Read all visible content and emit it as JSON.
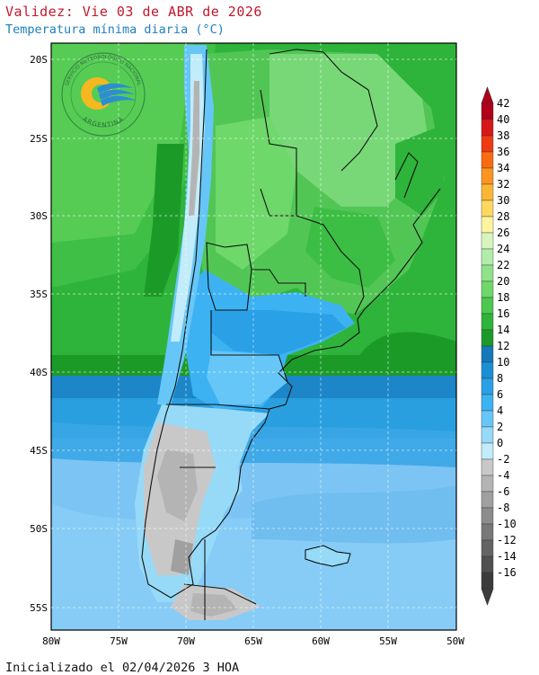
{
  "header": {
    "title": "Validez: Vie 03 de ABR de 2026",
    "subtitle": "Temperatura mínima diaria (°C)"
  },
  "footer": {
    "init_text": "Inicializado el 02/04/2026 3 HOA"
  },
  "logo": {
    "ring_text": "SERVICIO METEOROLÓGICO NACIONAL",
    "bottom_text": "ARGENTINA"
  },
  "axes": {
    "lat_labels": [
      "20S",
      "25S",
      "30S",
      "35S",
      "40S",
      "45S",
      "50S",
      "55S"
    ],
    "lon_labels": [
      "80W",
      "75W",
      "70W",
      "65W",
      "60W",
      "55W",
      "50W"
    ]
  },
  "colorbar": {
    "labels": [
      "42",
      "40",
      "38",
      "36",
      "34",
      "32",
      "30",
      "28",
      "26",
      "24",
      "22",
      "20",
      "18",
      "16",
      "14",
      "12",
      "10",
      "8",
      "6",
      "4",
      "2",
      "0",
      "-2",
      "-4",
      "-6",
      "-8",
      "-10",
      "-12",
      "-14",
      "-16"
    ],
    "colors": [
      "#b0001a",
      "#d81818",
      "#ee3a10",
      "#fa6a10",
      "#fb9420",
      "#fcb634",
      "#fdd860",
      "#fef4a0",
      "#d8f5c0",
      "#b2ecaa",
      "#8ee28a",
      "#6ed86a",
      "#4cc84c",
      "#2eb43a",
      "#1c9a28",
      "#1479b8",
      "#1a8fd4",
      "#2aa0e6",
      "#3db2f2",
      "#66c6f8",
      "#96daf8",
      "#c2ecfa",
      "#c8c8c8",
      "#b4b4b4",
      "#a0a0a0",
      "#8c8c8c",
      "#787878",
      "#646464",
      "#505050",
      "#3c3c3c"
    ]
  }
}
